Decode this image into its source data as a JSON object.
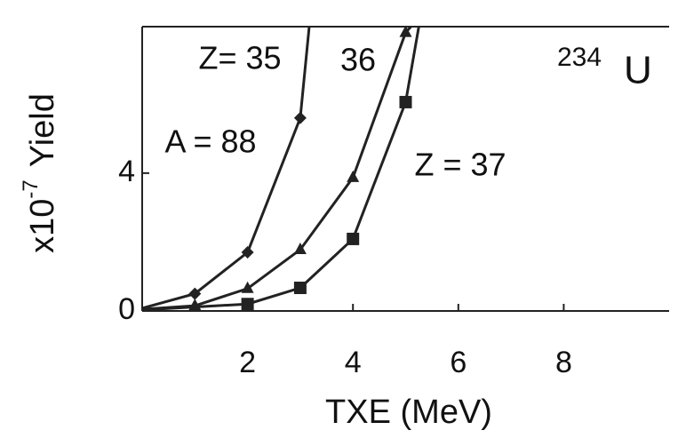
{
  "chart_data": {
    "type": "line",
    "xlabel": "TXE (MeV)",
    "ylabel_prefix": "x10",
    "ylabel_exponent": "-7",
    "ylabel": "Yield",
    "xlim": [
      0,
      10
    ],
    "ylim": [
      0,
      8.25
    ],
    "xticks": [
      2,
      4,
      6,
      8
    ],
    "yticks": [
      0,
      4
    ],
    "series": [
      {
        "name": "Z= 35",
        "color": "#222222",
        "marker": "diamond",
        "x": [
          0,
          1,
          2,
          3,
          3.17
        ],
        "values": [
          0.08,
          0.5,
          1.7,
          5.6,
          8.25
        ]
      },
      {
        "name": "36",
        "color": "#222222",
        "marker": "triangle",
        "x": [
          0,
          1,
          2,
          3,
          4,
          5,
          5.1
        ],
        "values": [
          0.05,
          0.15,
          0.65,
          1.78,
          3.87,
          8.08,
          8.25
        ]
      },
      {
        "name": "Z = 37",
        "color": "#222222",
        "marker": "square",
        "x": [
          0,
          2,
          3,
          4,
          5,
          5.25
        ],
        "values": [
          0.03,
          0.2,
          0.67,
          2.09,
          6.06,
          8.25
        ]
      }
    ],
    "annotations": [
      "A = 88",
      "234",
      "U"
    ]
  }
}
